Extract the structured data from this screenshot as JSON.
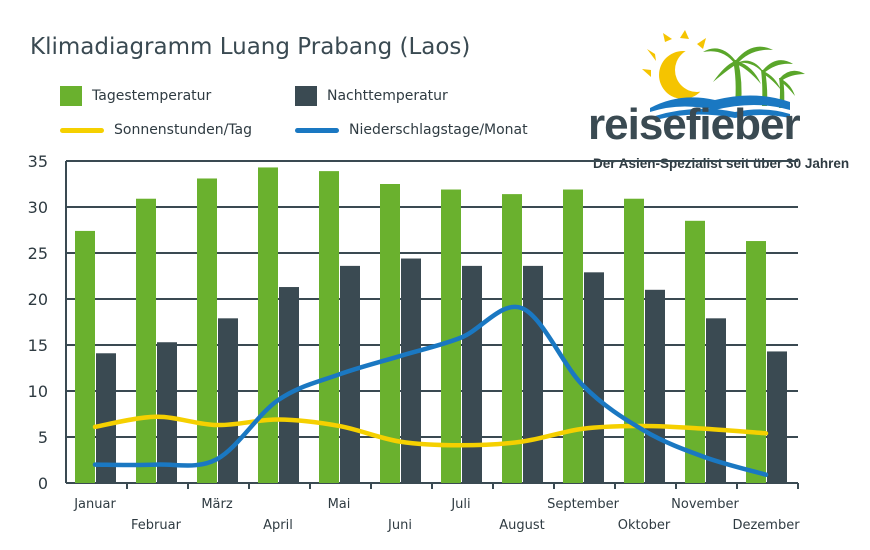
{
  "title": "Klimadiagramm Luang Prabang (Laos)",
  "brand": {
    "name": "reisefieber",
    "tagline": "Der Asien-Spezialist seit über 30 Jahren"
  },
  "colors": {
    "day": "#6ab12e",
    "night": "#3a4a52",
    "sun": "#f5d000",
    "rain": "#1a78c2",
    "grid": "#3a4a52",
    "text": "#2f3b42"
  },
  "chart_data": {
    "type": "bar",
    "title": "Klimadiagramm Luang Prabang (Laos)",
    "categories": [
      "Januar",
      "Februar",
      "März",
      "April",
      "Mai",
      "Juni",
      "Juli",
      "August",
      "September",
      "Oktober",
      "November",
      "Dezember"
    ],
    "ylim": [
      0,
      35
    ],
    "yticks": [
      0,
      5,
      10,
      15,
      20,
      25,
      30,
      35
    ],
    "grid": true,
    "legend_position": "top-left",
    "series": [
      {
        "name": "Tagestemperatur",
        "kind": "bar",
        "color": "#6ab12e",
        "values": [
          27.4,
          30.9,
          33.1,
          34.3,
          33.9,
          32.5,
          31.9,
          31.4,
          31.9,
          30.9,
          28.5,
          26.3
        ]
      },
      {
        "name": "Nachttemperatur",
        "kind": "bar",
        "color": "#3a4a52",
        "values": [
          14.1,
          15.3,
          17.9,
          21.3,
          23.6,
          24.4,
          23.6,
          23.6,
          22.9,
          21.0,
          17.9,
          14.3
        ]
      },
      {
        "name": "Sonnenstunden/Tag",
        "kind": "line",
        "color": "#f5d000",
        "values": [
          6.1,
          7.2,
          6.3,
          6.9,
          6.2,
          4.5,
          4.1,
          4.5,
          5.9,
          6.2,
          5.9,
          5.4
        ]
      },
      {
        "name": "Niederschlagstage/Monat",
        "kind": "line",
        "color": "#1a78c2",
        "values": [
          2.0,
          2.0,
          2.6,
          9.0,
          11.8,
          13.8,
          15.8,
          19.0,
          10.6,
          5.7,
          2.8,
          0.9
        ]
      }
    ]
  }
}
